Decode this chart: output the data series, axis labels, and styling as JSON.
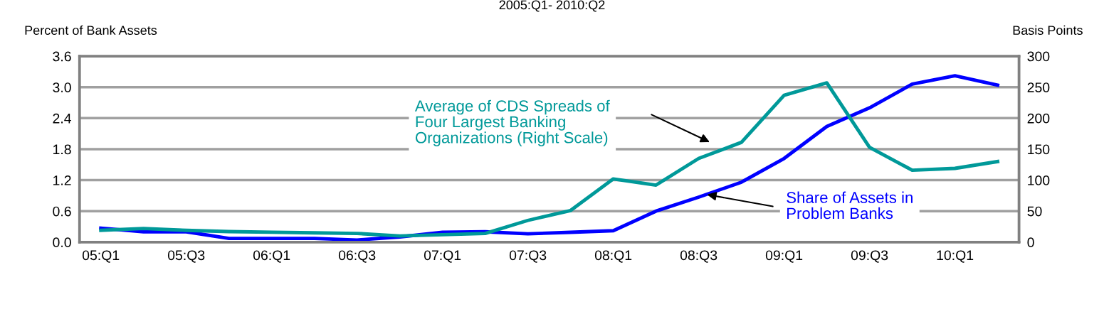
{
  "chart_data": {
    "type": "line",
    "title": "2005:Q1- 2010:Q2",
    "categories": [
      "05:Q1",
      null,
      "05:Q3",
      null,
      "06:Q1",
      null,
      "06:Q3",
      null,
      "07:Q1",
      null,
      "07:Q3",
      null,
      "08:Q1",
      null,
      "08:Q3",
      null,
      "09:Q1",
      null,
      "09:Q3",
      null,
      "10:Q1",
      null
    ],
    "ylabel": "Percent of Bank Assets",
    "y2label": "Basis Points",
    "ylim": [
      0,
      3.6
    ],
    "yticks": [
      {
        "value": 0,
        "label": "0.0"
      },
      {
        "value": 0.6,
        "label": "0.6"
      },
      {
        "value": 1.2,
        "label": "1.2"
      },
      {
        "value": 1.8,
        "label": "1.8"
      },
      {
        "value": 2.4,
        "label": "2.4"
      },
      {
        "value": 3.0,
        "label": "3.0"
      },
      {
        "value": 3.6,
        "label": "3.6"
      }
    ],
    "y2lim": [
      0,
      300
    ],
    "y2ticks": [
      0,
      50,
      100,
      150,
      200,
      250,
      300
    ],
    "grid": "y",
    "marker": "none",
    "line_style": "solid",
    "series": [
      {
        "name": "Share of Assets in\nProblem Banks",
        "color": "#0000ff",
        "values": [
          0.27,
          0.2,
          0.2,
          0.07,
          0.07,
          0.07,
          0.04,
          0.1,
          0.19,
          0.2,
          0.16,
          0.19,
          0.22,
          0.6,
          0.87,
          1.16,
          1.62,
          2.24,
          2.6,
          3.06,
          3.22,
          3.04
        ]
      },
      {
        "name": "Average of CDS Spreads of\nFour Largest Banking\nOrganizations (Right Scale)",
        "color": "#009999",
        "axis": "y2",
        "values": [
          19,
          22,
          19,
          17,
          16,
          15,
          14,
          10,
          12,
          14,
          35,
          51,
          102,
          92,
          135,
          161,
          237,
          257,
          153,
          116,
          119,
          130
        ]
      }
    ]
  }
}
